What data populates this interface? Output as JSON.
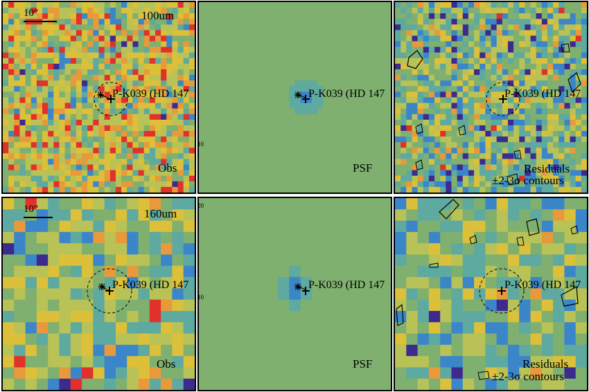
{
  "rows": [
    {
      "band": "100um",
      "scale_label": "10\"",
      "panels": [
        {
          "id": "obs",
          "corner_label": "Obs"
        },
        {
          "id": "psf",
          "corner_label": "PSF"
        },
        {
          "id": "res",
          "corner_label": "Residuals",
          "corner_label2": "±2-3σ contours"
        }
      ]
    },
    {
      "band": "160um",
      "scale_label": "10\"",
      "panels": [
        {
          "id": "obs",
          "corner_label": "Obs"
        },
        {
          "id": "psf",
          "corner_label": "PSF"
        },
        {
          "id": "res",
          "corner_label": "Residuals",
          "corner_label2": "±2-3σ contours"
        }
      ]
    }
  ],
  "target_label": "P-K039 (HD 147",
  "colors": {
    "low": "#3d2a8e",
    "midlow": "#3b86c9",
    "mid": "#7fb06f",
    "midhigh": "#dcc03a",
    "high": "#e0322a"
  },
  "side_ticks": {
    "upper": "10",
    "lower_top": "20",
    "lower_mid": "10"
  }
}
